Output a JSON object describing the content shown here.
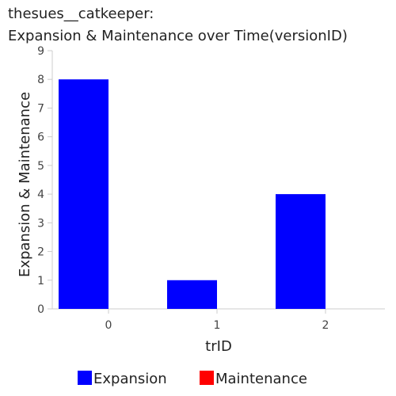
{
  "chart_data": {
    "type": "bar",
    "title": "thesues__catkeeper:",
    "subtitle": "Expansion & Maintenance over Time(versionID)",
    "xlabel": "trID",
    "ylabel": "Expansion & Maintenance",
    "categories": [
      "0",
      "1",
      "2"
    ],
    "yticks": [
      "0",
      "1",
      "2",
      "3",
      "4",
      "5",
      "6",
      "7",
      "8",
      "9"
    ],
    "ylim": [
      0,
      9
    ],
    "grid": false,
    "legend_position": "bottom",
    "series": [
      {
        "name": "Expansion",
        "color": "#0000ff",
        "values": [
          8,
          1,
          4
        ]
      },
      {
        "name": "Maintenance",
        "color": "#ff0000",
        "values": [
          0,
          0,
          0
        ]
      }
    ]
  }
}
